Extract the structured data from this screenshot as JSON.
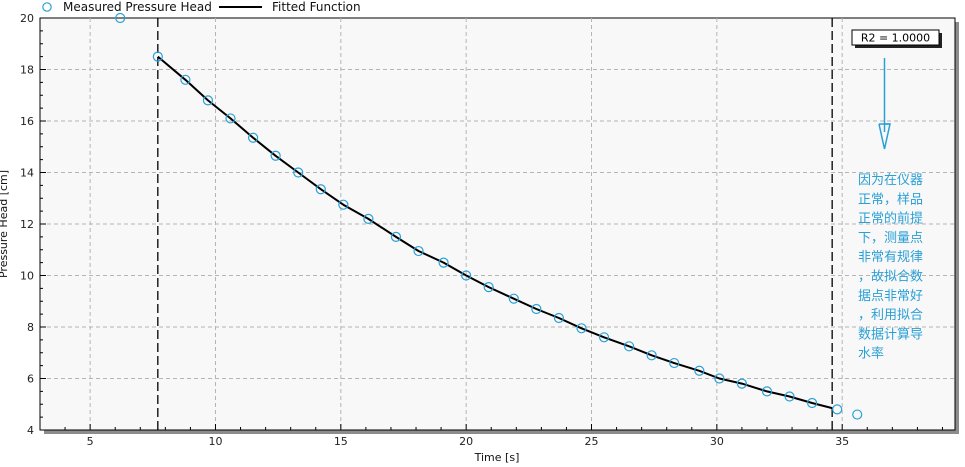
{
  "legend": {
    "measured_label": "Measured Pressure Head",
    "fitted_label": "Fitted Function"
  },
  "r2_label": "R2 = 1.0000",
  "annotation_lines": [
    "因为在仪器",
    "正常，样品",
    "正常的前提",
    "下，测量点",
    "非常有规律",
    "，故拟合数",
    "据点非常好",
    "，利用拟合",
    "数据计算导",
    "水率"
  ],
  "colors": {
    "marker": "#2aa0d6",
    "fit_line": "#000000",
    "annotation": "#2aa0d6",
    "plot_background": "#f8f8f8",
    "grid": "#b5b5b5"
  },
  "chart_data": {
    "type": "scatter",
    "title": "",
    "xlabel": "Time [s]",
    "ylabel": "Pressure Head [cm]",
    "xlim": [
      3,
      39.5
    ],
    "ylim": [
      4,
      20
    ],
    "x_ticks": [
      5,
      10,
      15,
      20,
      25,
      30,
      35
    ],
    "y_ticks": [
      4,
      6,
      8,
      10,
      12,
      14,
      16,
      18,
      20
    ],
    "grid": true,
    "legend_position": "top-left",
    "fit_range": [
      7.7,
      34.6
    ],
    "series": [
      {
        "name": "Measured Pressure Head",
        "marker": "open-circle",
        "x": [
          6.2,
          7.7,
          8.8,
          9.7,
          10.6,
          11.5,
          12.4,
          13.3,
          14.2,
          15.1,
          16.1,
          17.2,
          18.1,
          19.1,
          20.0,
          20.9,
          21.9,
          22.8,
          23.7,
          24.6,
          25.5,
          26.5,
          27.4,
          28.3,
          29.3,
          30.1,
          31.0,
          32.0,
          32.9,
          33.8,
          34.8,
          35.6
        ],
        "y": [
          20.0,
          18.5,
          17.6,
          16.8,
          16.1,
          15.35,
          14.65,
          14.0,
          13.35,
          12.75,
          12.2,
          11.5,
          10.95,
          10.5,
          10.0,
          9.55,
          9.1,
          8.7,
          8.35,
          7.95,
          7.6,
          7.25,
          6.9,
          6.6,
          6.3,
          6.0,
          5.8,
          5.5,
          5.3,
          5.05,
          4.8,
          4.6
        ]
      },
      {
        "name": "Fitted Function",
        "marker": "line",
        "x": [
          7.7,
          8.8,
          9.7,
          10.6,
          11.5,
          12.4,
          13.3,
          14.2,
          15.1,
          16.1,
          17.2,
          18.1,
          19.1,
          20.0,
          20.9,
          21.9,
          22.8,
          23.7,
          24.6,
          25.5,
          26.5,
          27.4,
          28.3,
          29.3,
          30.1,
          31.0,
          32.0,
          32.9,
          33.8,
          34.6
        ],
        "y": [
          18.5,
          17.6,
          16.8,
          16.1,
          15.35,
          14.65,
          14.0,
          13.35,
          12.75,
          12.2,
          11.5,
          10.95,
          10.5,
          10.0,
          9.55,
          9.1,
          8.7,
          8.35,
          7.95,
          7.6,
          7.25,
          6.9,
          6.6,
          6.3,
          6.0,
          5.8,
          5.5,
          5.3,
          5.05,
          4.85
        ]
      }
    ]
  }
}
